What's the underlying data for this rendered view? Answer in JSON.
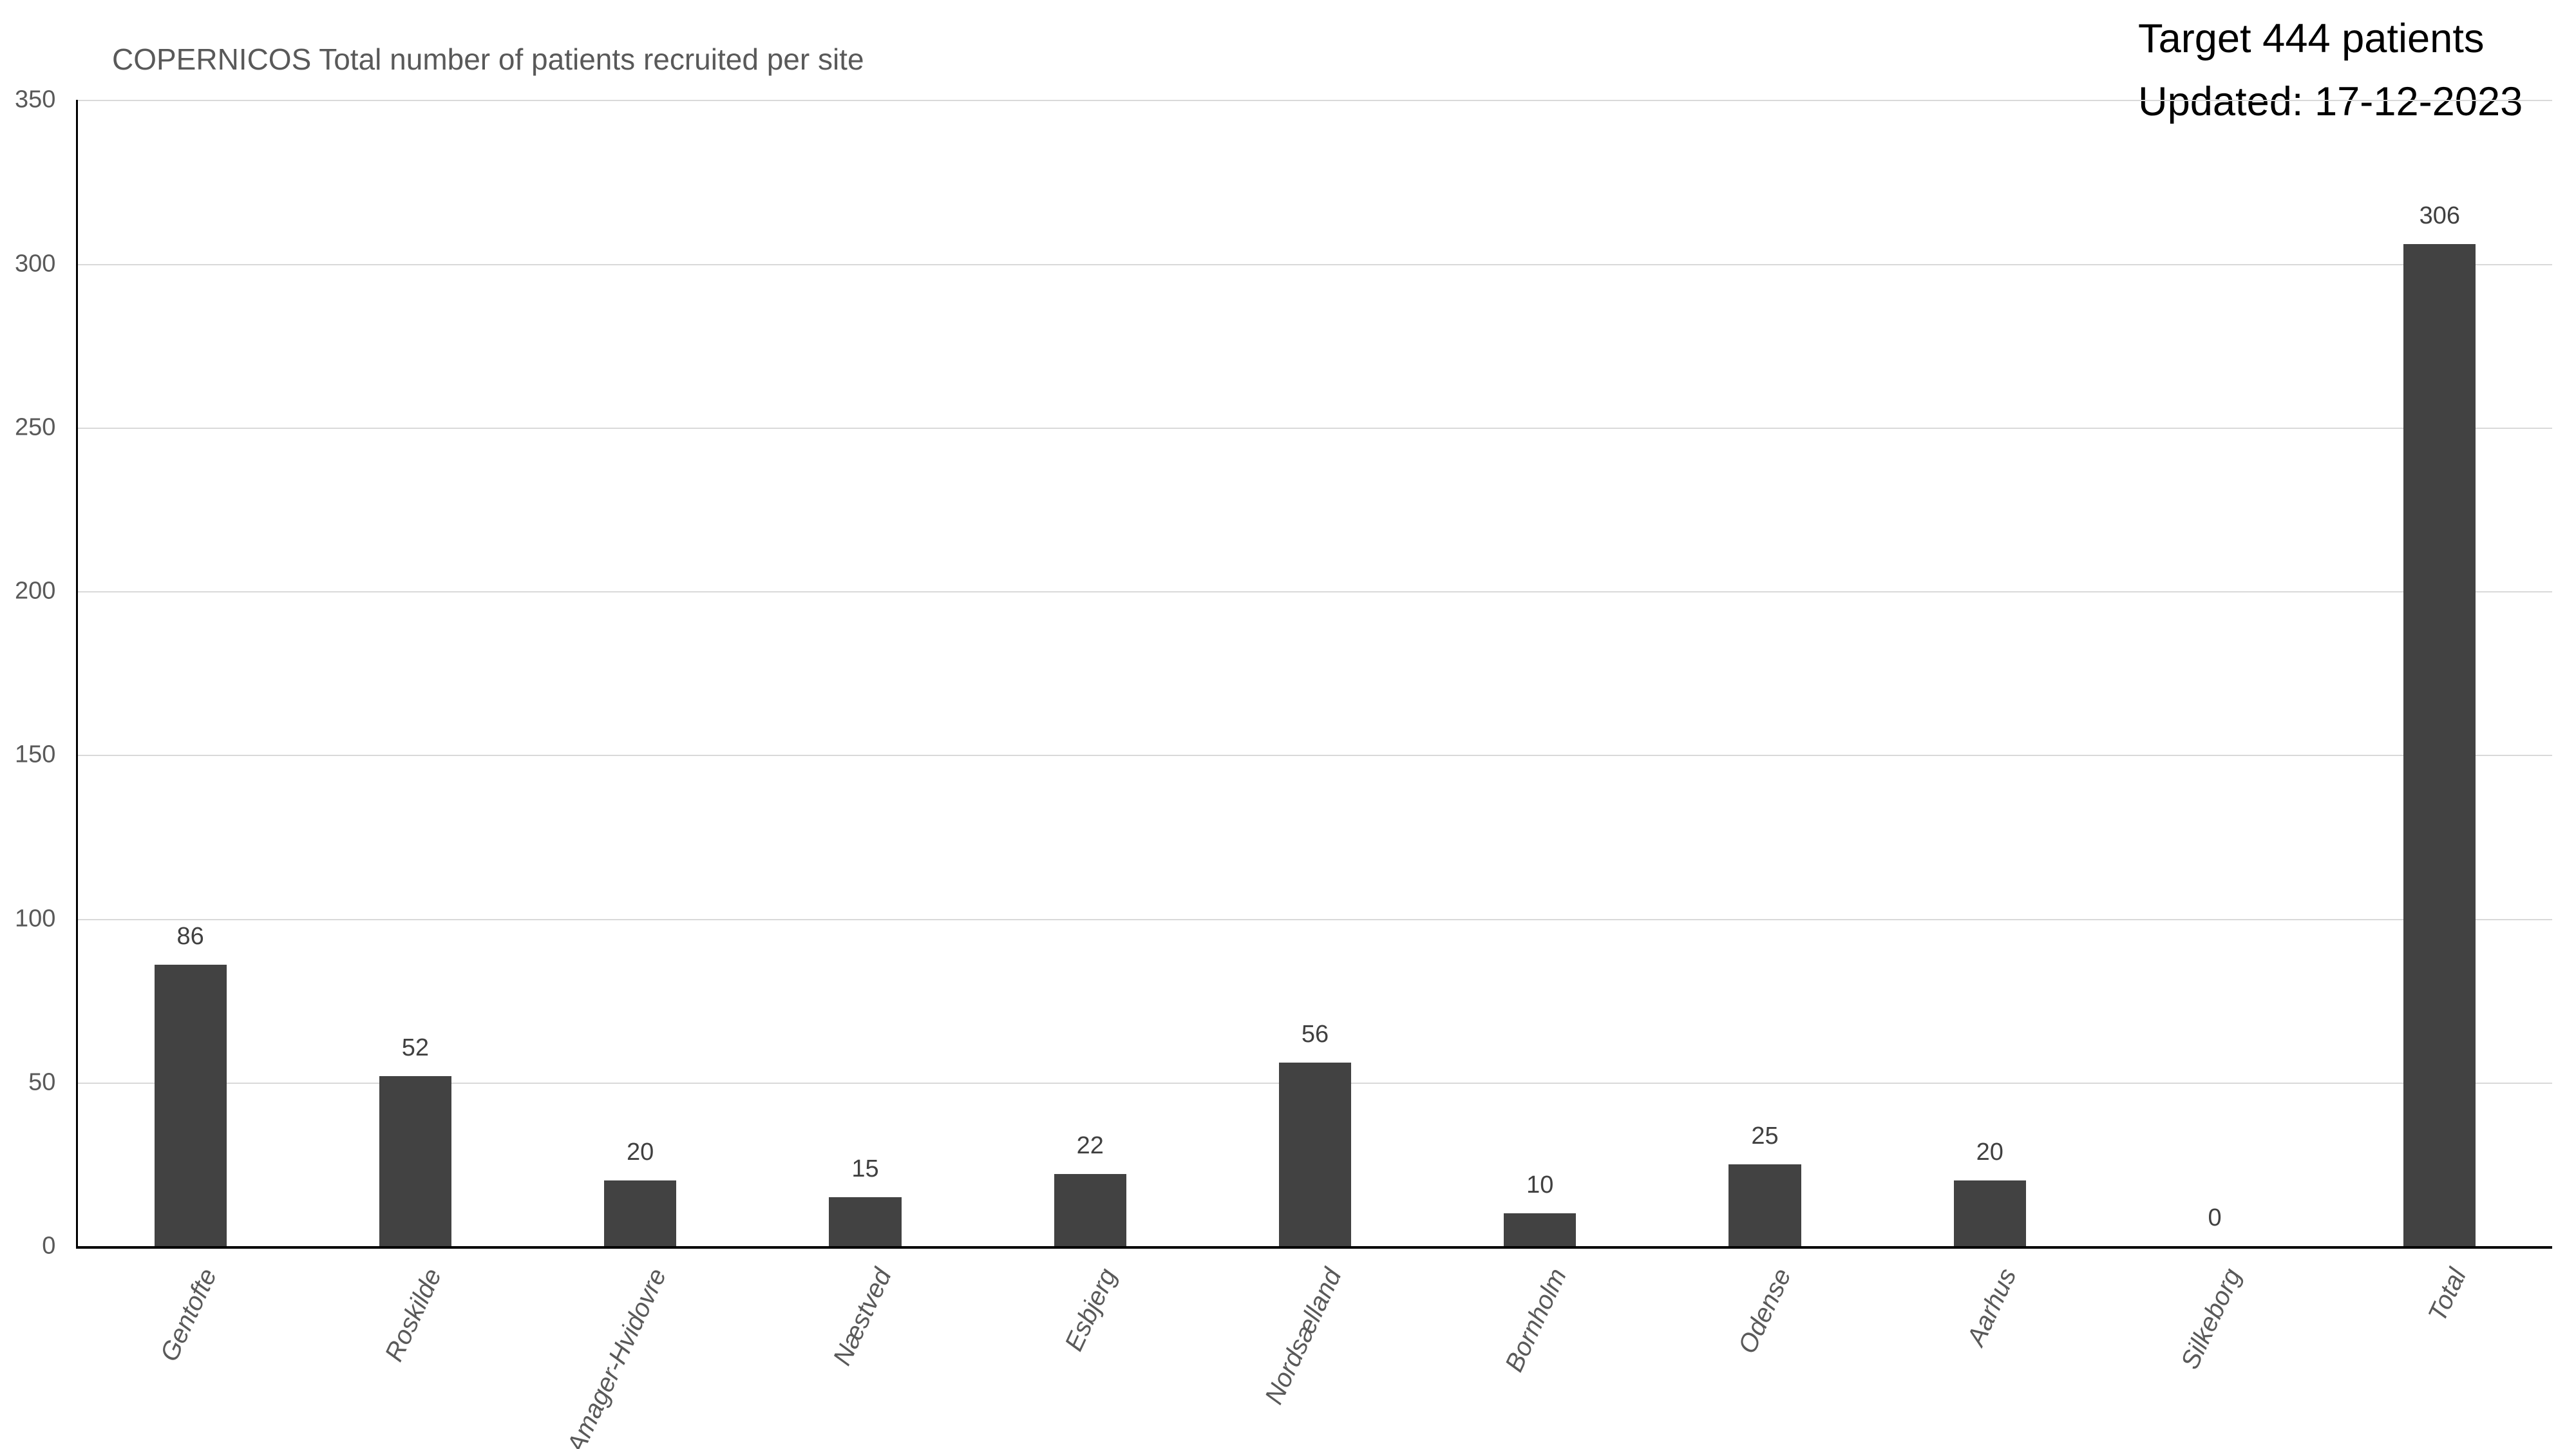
{
  "header": {
    "target_line": "Target 444 patients",
    "updated_line": "Updated: 17-12-2023"
  },
  "chart_data": {
    "type": "bar",
    "title": "COPERNICOS Total number of patients recruited per site",
    "categories": [
      "Gentofte",
      "Roskilde",
      "Amager-Hvidovre",
      "Næstved",
      "Esbjerg",
      "Nordsælland",
      "Bornholm",
      "Odense",
      "Aarhus",
      "Silkeborg",
      "Total"
    ],
    "values": [
      86,
      52,
      20,
      15,
      22,
      56,
      10,
      25,
      20,
      0,
      306
    ],
    "xlabel": "",
    "ylabel": "",
    "ylim": [
      0,
      350
    ],
    "yticks": [
      0,
      50,
      100,
      150,
      200,
      250,
      300,
      350
    ],
    "grid": true,
    "legend": "none",
    "colors": {
      "bar_fill": "#424242",
      "value_label": "#404040",
      "axis_text": "#595959",
      "gridline": "#d9d9d9",
      "axis_line": "#000000",
      "note_text": "#000000",
      "background": "#ffffff"
    }
  }
}
